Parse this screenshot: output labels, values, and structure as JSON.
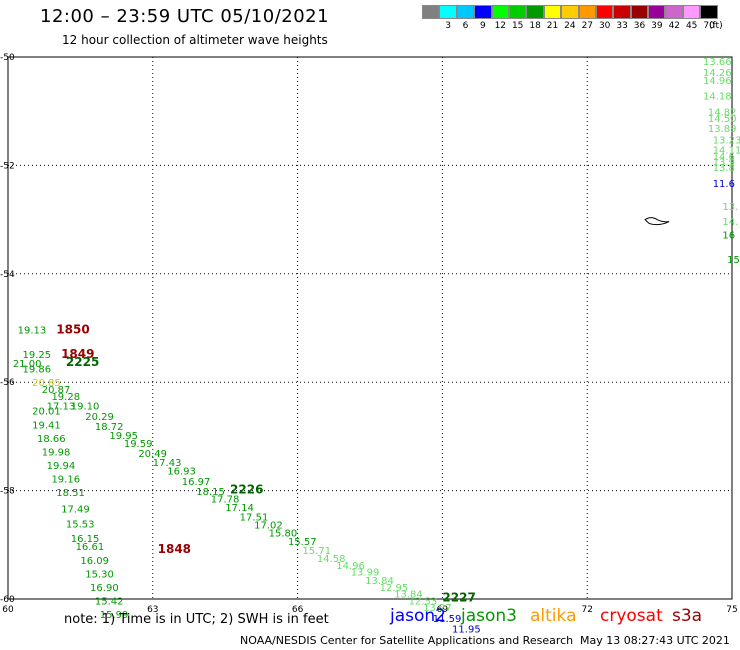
{
  "header": {
    "title": "12:00 – 23:59 UTC 05/10/2021",
    "subtitle": "12 hour collection of altimeter wave heights"
  },
  "legend": {
    "unit": "(ft)",
    "entries": [
      {
        "label": "",
        "color": "#808080"
      },
      {
        "label": "3",
        "color": "#00ffff"
      },
      {
        "label": "6",
        "color": "#00c8ff"
      },
      {
        "label": "9",
        "color": "#0000ff"
      },
      {
        "label": "12",
        "color": "#00ff00"
      },
      {
        "label": "15",
        "color": "#00cc00"
      },
      {
        "label": "18",
        "color": "#009900"
      },
      {
        "label": "21",
        "color": "#ffff00"
      },
      {
        "label": "24",
        "color": "#ffcc00"
      },
      {
        "label": "27",
        "color": "#ff9900"
      },
      {
        "label": "30",
        "color": "#ff0000"
      },
      {
        "label": "33",
        "color": "#cc0000"
      },
      {
        "label": "36",
        "color": "#990000"
      },
      {
        "label": "39",
        "color": "#990099"
      },
      {
        "label": "42",
        "color": "#cc66cc"
      },
      {
        "label": "45",
        "color": "#ff99ff"
      },
      {
        "label": "70",
        "color": "#000000"
      }
    ]
  },
  "map": {
    "lon_range": [
      60,
      75
    ],
    "lat_range": [
      -60,
      -50
    ],
    "lon_ticks": [
      "60",
      "63",
      "66",
      "69",
      "72",
      "75"
    ],
    "lat_ticks": [
      "-50",
      "-52",
      "-54",
      "-56",
      "-58",
      "-60"
    ],
    "tracks": [
      {
        "name": "jason3",
        "time": "2225",
        "time_pos": [
          61.2,
          -55.7
        ],
        "time_color": "#006600",
        "points": [
          [
            60.2,
            -55.1,
            "19.13",
            "#009900"
          ],
          [
            60.3,
            -55.55,
            "19.25",
            "#009900"
          ],
          [
            60.1,
            -55.72,
            "21.00",
            "#009900"
          ],
          [
            60.3,
            -55.82,
            "19.86",
            "#009900"
          ],
          [
            60.5,
            -56.07,
            "20.85",
            "#cccc00"
          ],
          [
            60.7,
            -56.2,
            "20.87",
            "#009900"
          ],
          [
            60.9,
            -56.33,
            "19.28",
            "#009900"
          ],
          [
            60.8,
            -56.5,
            "17.13",
            "#009900"
          ],
          [
            61.3,
            -56.5,
            "19.10",
            "#009900"
          ],
          [
            61.6,
            -56.7,
            "20.29",
            "#009900"
          ],
          [
            61.8,
            -56.88,
            "18.72",
            "#009900"
          ],
          [
            62.1,
            -57.05,
            "19.95",
            "#009900"
          ],
          [
            62.4,
            -57.2,
            "19.59",
            "#009900"
          ],
          [
            62.7,
            -57.38,
            "20.49",
            "#009900"
          ],
          [
            63.0,
            -57.55,
            "17.43",
            "#009900"
          ],
          [
            63.3,
            -57.7,
            "16.93",
            "#009900"
          ],
          [
            63.6,
            -57.9,
            "16.97",
            "#009900"
          ],
          [
            63.9,
            -58.08,
            "18.15",
            "#009900"
          ],
          [
            64.2,
            -58.22,
            "17.78",
            "#009900"
          ],
          [
            64.5,
            -58.38,
            "17.14",
            "#009900"
          ],
          [
            64.8,
            -58.55,
            "17.51",
            "#009900"
          ],
          [
            65.1,
            -58.7,
            "17.02",
            "#009900"
          ],
          [
            65.4,
            -58.85,
            "15.80",
            "#009900"
          ],
          [
            65.8,
            -59.0,
            "15.57",
            "#009900"
          ]
        ]
      },
      {
        "name": "jason3",
        "time": "2226",
        "time_pos": [
          64.6,
          -58.05
        ],
        "time_color": "#006600",
        "points": [
          [
            66.1,
            -59.17,
            "15.71",
            "#66dd66"
          ],
          [
            66.4,
            -59.32,
            "14.58",
            "#66dd66"
          ],
          [
            66.8,
            -59.45,
            "14.96",
            "#66dd66"
          ],
          [
            67.1,
            -59.57,
            "13.99",
            "#66dd66"
          ],
          [
            67.4,
            -59.72,
            "13.84",
            "#66dd66"
          ],
          [
            67.7,
            -59.85,
            "12.95",
            "#66dd66"
          ],
          [
            68.0,
            -59.97,
            "13.84",
            "#66dd66"
          ],
          [
            68.3,
            -60.1,
            "12.53",
            "#66dd66"
          ],
          [
            68.6,
            -60.22,
            "13.27",
            "#66dd66"
          ]
        ]
      },
      {
        "name": "jason2",
        "time": "",
        "time_pos": [
          0,
          0
        ],
        "time_color": "#0000cc",
        "points": [
          [
            68.8,
            -60.42,
            "11.59",
            "#0000cc"
          ],
          [
            69.2,
            -60.62,
            "11.95",
            "#0000cc"
          ]
        ]
      },
      {
        "name": "jason3",
        "time": "2227",
        "time_pos": [
          69.0,
          -60.05
        ],
        "time_color": "#006600",
        "points": []
      },
      {
        "name": "cryosat",
        "time": "1850",
        "time_pos": [
          61.0,
          -55.1
        ],
        "time_color": "#990000",
        "points": []
      },
      {
        "name": "cryosat",
        "time": "1849",
        "time_pos": [
          61.1,
          -55.55
        ],
        "time_color": "#990000",
        "points": []
      },
      {
        "name": "jason3",
        "time": "",
        "time_pos": [
          0,
          0
        ],
        "time_color": "#006600",
        "points": [
          [
            60.5,
            -56.6,
            "20.01",
            "#009900"
          ],
          [
            60.5,
            -56.85,
            "19.41",
            "#009900"
          ],
          [
            60.6,
            -57.1,
            "18.66",
            "#009900"
          ],
          [
            60.7,
            -57.35,
            "19.98",
            "#009900"
          ],
          [
            60.8,
            -57.6,
            "19.94",
            "#009900"
          ],
          [
            60.9,
            -57.85,
            "19.16",
            "#009900"
          ],
          [
            61.0,
            -58.1,
            "18.51",
            "#009900"
          ],
          [
            61.1,
            -58.4,
            "17.49",
            "#009900"
          ],
          [
            61.2,
            -58.68,
            "15.53",
            "#009900"
          ],
          [
            61.3,
            -58.95,
            "16.15",
            "#009900"
          ],
          [
            61.4,
            -59.1,
            "16.61",
            "#009900"
          ],
          [
            61.5,
            -59.35,
            "16.09",
            "#009900"
          ],
          [
            61.6,
            -59.6,
            "15.30",
            "#009900"
          ],
          [
            61.7,
            -59.85,
            "16.90",
            "#009900"
          ],
          [
            61.8,
            -60.1,
            "15.42",
            "#009900"
          ],
          [
            61.9,
            -60.35,
            "15.99",
            "#009900"
          ]
        ]
      },
      {
        "name": "cryosat",
        "time": "1848",
        "time_pos": [
          63.1,
          -59.15
        ],
        "time_color": "#990000",
        "points": []
      },
      {
        "name": "jason3",
        "time": "",
        "time_pos": [
          0,
          0
        ],
        "time_color": "#66dd66",
        "points": [
          [
            74.4,
            -50.15,
            "13.66",
            "#66dd66"
          ],
          [
            74.4,
            -50.35,
            "14.26",
            "#66dd66"
          ],
          [
            74.4,
            -50.5,
            "14.96",
            "#66dd66"
          ],
          [
            74.4,
            -50.78,
            "14.18",
            "#66dd66"
          ],
          [
            74.5,
            -51.08,
            "14.82",
            "#66dd66"
          ],
          [
            74.5,
            -51.2,
            "14.50",
            "#66dd66"
          ],
          [
            74.5,
            -51.38,
            "13.89",
            "#66dd66"
          ],
          [
            74.6,
            -51.6,
            "13.23",
            "#66dd66"
          ],
          [
            74.6,
            -51.78,
            "14.11",
            "#66dd66"
          ],
          [
            74.6,
            -51.9,
            "14.6",
            "#66dd66"
          ],
          [
            74.6,
            -52.0,
            "13.9",
            "#66dd66"
          ],
          [
            74.6,
            -52.1,
            "13.8",
            "#66dd66"
          ],
          [
            74.6,
            -52.4,
            "11.6",
            "#0000cc"
          ],
          [
            74.8,
            -52.82,
            "13.",
            "#66dd66"
          ],
          [
            74.8,
            -53.1,
            "14.",
            "#66dd66"
          ],
          [
            74.8,
            -53.35,
            "16",
            "#009900"
          ],
          [
            74.9,
            -53.8,
            "15",
            "#009900"
          ]
        ]
      }
    ],
    "island_label": ""
  },
  "footer": {
    "note": "note:  1) Time is in UTC;  2) SWH is in feet",
    "satellites": [
      {
        "name": "jason2",
        "color": "#0000ff"
      },
      {
        "name": "jason3",
        "color": "#009900"
      },
      {
        "name": "altika",
        "color": "#ff9900"
      },
      {
        "name": "cryosat",
        "color": "#ff0000"
      },
      {
        "name": "s3a",
        "color": "#990000"
      }
    ],
    "credit": "NOAA/NESDIS Center for Satellite Applications and Research",
    "timestamp": "May 13 08:27:43 UTC 2021"
  }
}
